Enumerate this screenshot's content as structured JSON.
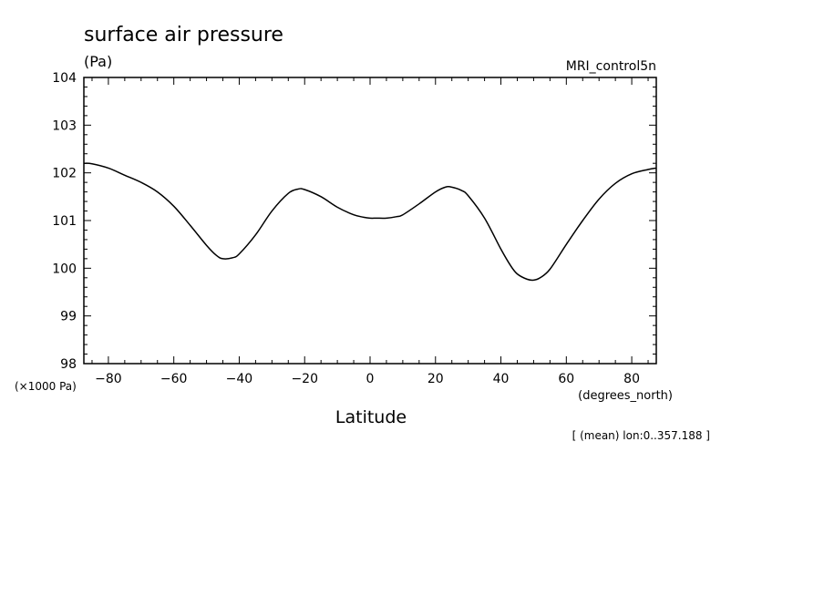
{
  "chart_data": {
    "type": "line",
    "title": "surface air pressure",
    "units_label": "(Pa)",
    "dataset_label": "MRI_control5n",
    "xlabel": "Latitude",
    "x_units_label": "(degrees_north)",
    "y_scale_label": "(×1000 Pa)",
    "footnote": "[ (mean) lon:0..357.188 ]",
    "xlim": [
      -87.5,
      87.5
    ],
    "ylim": [
      98,
      104
    ],
    "x_ticks": [
      -80,
      -60,
      -40,
      -20,
      0,
      20,
      40,
      60,
      80
    ],
    "x_tick_labels": [
      "−80",
      "−60",
      "−40",
      "−20",
      "0",
      "20",
      "40",
      "60",
      "80"
    ],
    "y_ticks": [
      98,
      99,
      100,
      101,
      102,
      103,
      104
    ],
    "y_tick_labels": [
      "98",
      "99",
      "100",
      "101",
      "102",
      "103",
      "104"
    ],
    "grid": false,
    "series": [
      {
        "x": [
          -87.5,
          -85,
          -80,
          -75,
          -70,
          -65,
          -60,
          -55,
          -50,
          -47,
          -45,
          -42,
          -40,
          -35,
          -30,
          -25,
          -22,
          -20,
          -15,
          -10,
          -5,
          -2,
          0,
          2,
          5,
          8,
          10,
          15,
          20,
          23,
          25,
          28,
          30,
          35,
          40,
          43,
          45,
          48,
          50,
          52,
          55,
          60,
          65,
          70,
          75,
          80,
          85,
          87.5
        ],
        "y": [
          102.2,
          102.19,
          102.1,
          101.95,
          101.8,
          101.6,
          101.3,
          100.9,
          100.48,
          100.27,
          100.2,
          100.22,
          100.3,
          100.7,
          101.2,
          101.57,
          101.66,
          101.65,
          101.5,
          101.28,
          101.12,
          101.07,
          101.05,
          101.05,
          101.05,
          101.08,
          101.12,
          101.35,
          101.6,
          101.7,
          101.7,
          101.63,
          101.52,
          101.05,
          100.4,
          100.05,
          99.88,
          99.77,
          99.75,
          99.8,
          99.98,
          100.5,
          101.0,
          101.45,
          101.78,
          101.98,
          102.07,
          102.1
        ]
      }
    ]
  }
}
